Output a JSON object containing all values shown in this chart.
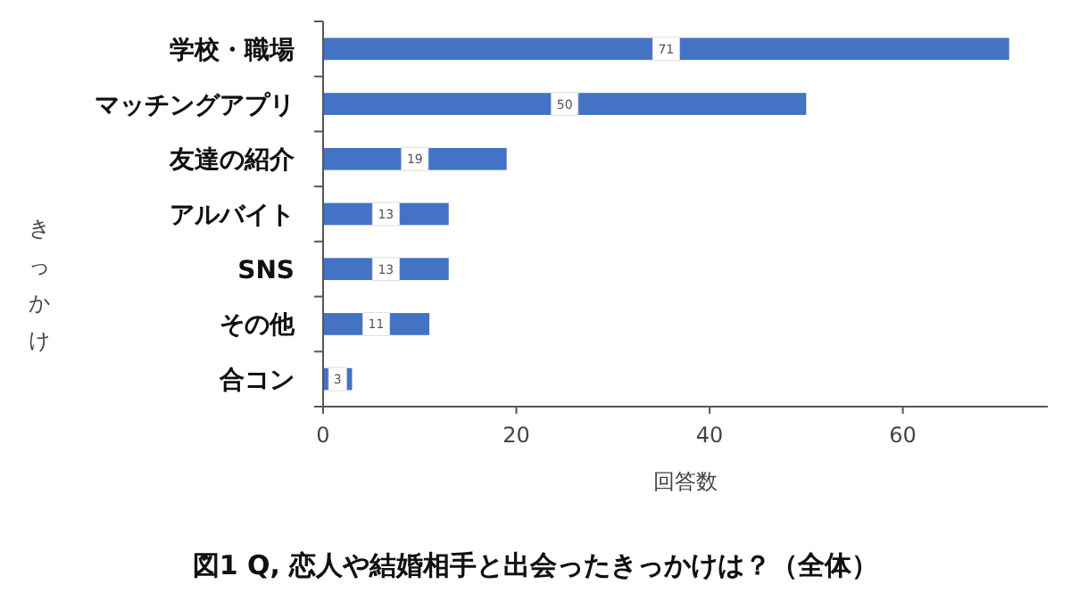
{
  "chart_data": {
    "type": "bar",
    "orientation": "horizontal",
    "title": "図1 Q, 恋人や結婚相手と出会ったきっかけは？（全体）",
    "xlabel": "回答数",
    "ylabel": "きっかけ",
    "categories": [
      "学校・職場",
      "マッチングアプリ",
      "友達の紹介",
      "アルバイト",
      "SNS",
      "その他",
      "合コン"
    ],
    "values": [
      71,
      50,
      19,
      13,
      13,
      11,
      3
    ],
    "color": "#4472c4",
    "data_labels": true,
    "xlim": [
      0,
      75
    ],
    "xticks": [
      0,
      20,
      40,
      60
    ],
    "grid": false
  }
}
